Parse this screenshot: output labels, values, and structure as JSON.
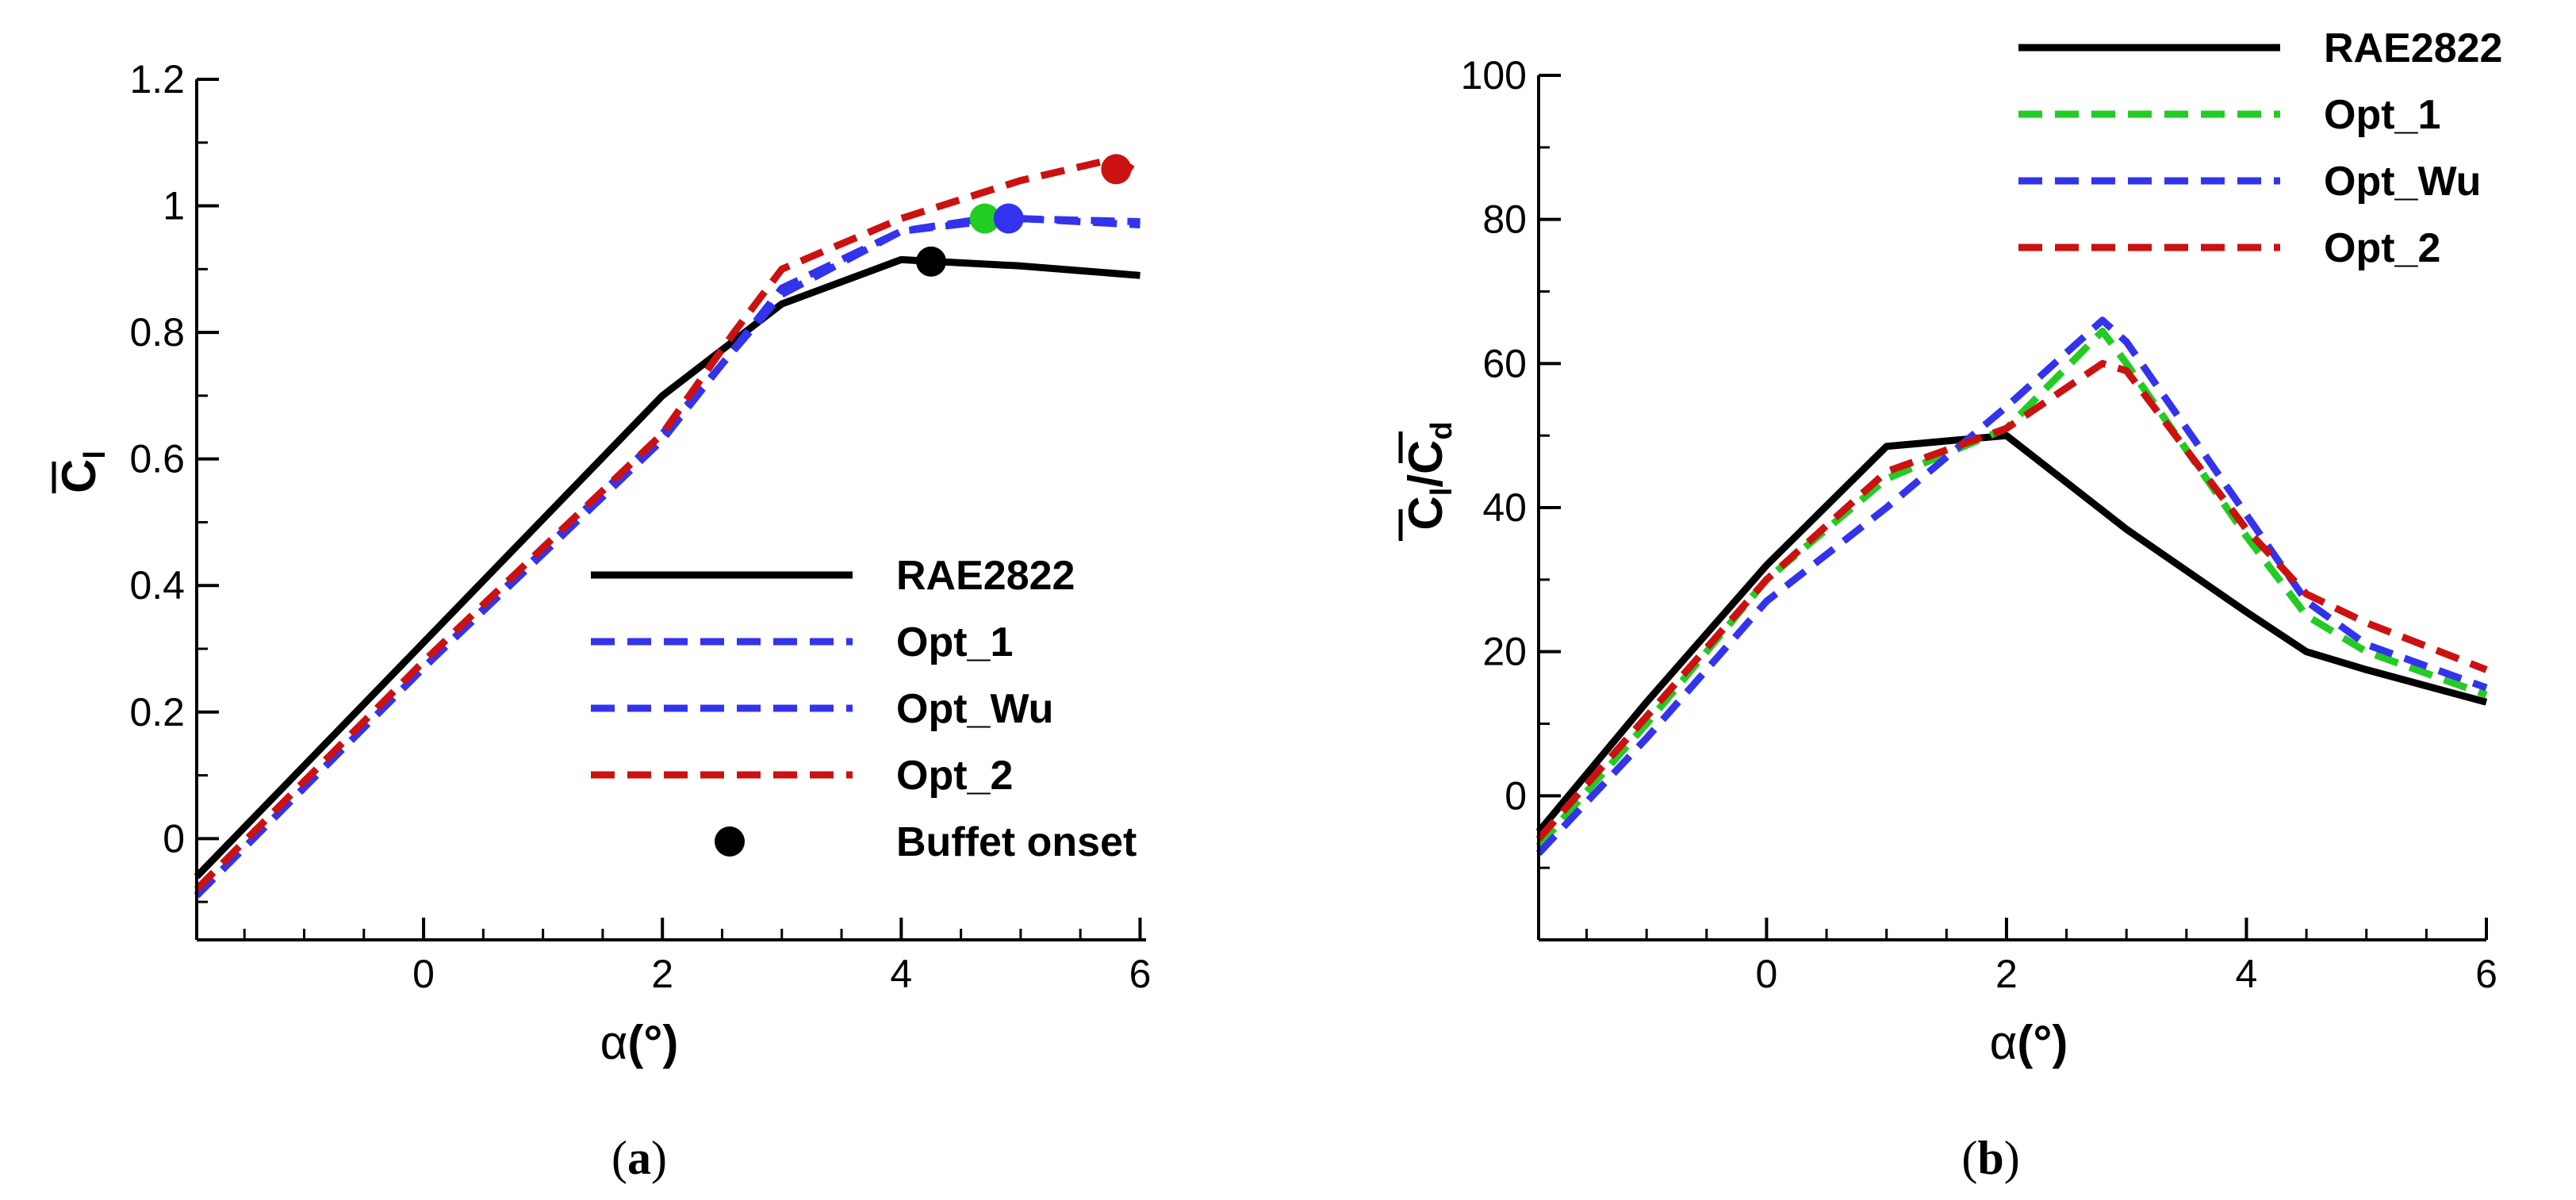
{
  "chart_data": [
    {
      "type": "line",
      "panel_label": "(a)",
      "caption": {
        "open": "(",
        "letter": "a",
        "close": ")"
      },
      "xlabel": "α(°)",
      "xlabel_parts": {
        "alpha": "α",
        "open": "(",
        "deg": "°",
        "close": ")"
      },
      "ylabel": "C̄l",
      "ylabel_parts": {
        "main": "C",
        "sub": "l"
      },
      "xlim": [
        -1.9,
        6.05
      ],
      "ylim": [
        -0.16,
        1.2
      ],
      "xticks": [
        0,
        2,
        4,
        6
      ],
      "xtick_labels": [
        "0",
        "2",
        "4",
        "6"
      ],
      "yticks": [
        0,
        0.2,
        0.4,
        0.6,
        0.8,
        1,
        1.2
      ],
      "ytick_labels": [
        "0",
        "0.2",
        "0.4",
        "0.6",
        "0.8",
        "1",
        "1.2"
      ],
      "grid": false,
      "legend_position": "lower-right",
      "series": [
        {
          "name": "RAE2822",
          "color": "#000000",
          "dash": "solid",
          "x": [
            -1.9,
            0,
            2,
            3,
            4,
            5,
            6
          ],
          "y": [
            -0.06,
            0.31,
            0.7,
            0.845,
            0.915,
            0.905,
            0.89
          ]
        },
        {
          "name": "Opt_1",
          "color": "#3333ee",
          "dash": "dashed",
          "x": [
            -1.9,
            0,
            2,
            3,
            4,
            4.7,
            5,
            6
          ],
          "y": [
            -0.09,
            0.27,
            0.64,
            0.86,
            0.96,
            0.98,
            0.98,
            0.97
          ]
        },
        {
          "name": "Opt_Wu",
          "color": "#3333ee",
          "dash": "dashed",
          "x": [
            -1.9,
            0,
            2,
            3,
            4,
            4.9,
            6
          ],
          "y": [
            -0.09,
            0.27,
            0.63,
            0.87,
            0.96,
            0.98,
            0.975
          ]
        },
        {
          "name": "Opt_2",
          "color": "#cc1111",
          "dash": "dashed",
          "x": [
            -1.9,
            0,
            2,
            2.6,
            3,
            4,
            5,
            5.8,
            6
          ],
          "y": [
            -0.08,
            0.28,
            0.64,
            0.8,
            0.9,
            0.98,
            1.04,
            1.075,
            1.05
          ]
        }
      ],
      "buffet_points": [
        {
          "series": "RAE2822",
          "x": 4.25,
          "y": 0.912,
          "color": "#000000"
        },
        {
          "series": "Opt_1",
          "x": 4.7,
          "y": 0.98,
          "color": "#22cc22"
        },
        {
          "series": "Opt_Wu",
          "x": 4.9,
          "y": 0.98,
          "color": "#3333ee"
        },
        {
          "series": "Opt_2",
          "x": 5.8,
          "y": 1.058,
          "color": "#cc1111"
        }
      ],
      "legend": [
        {
          "label": "RAE2822",
          "color": "#000000",
          "kind": "solid"
        },
        {
          "label": "Opt_1",
          "color": "#3333ee",
          "kind": "dashed"
        },
        {
          "label": "Opt_Wu",
          "color": "#3333ee",
          "kind": "dashed"
        },
        {
          "label": "Opt_2",
          "color": "#cc1111",
          "kind": "dashed"
        },
        {
          "label": "Buffet onset",
          "color": "#000000",
          "kind": "marker"
        }
      ]
    },
    {
      "type": "line",
      "panel_label": "(b)",
      "caption": {
        "open": "(",
        "letter": "b",
        "close": ")"
      },
      "xlabel": "α(°)",
      "xlabel_parts": {
        "alpha": "α",
        "open": "(",
        "deg": "°",
        "close": ")"
      },
      "ylabel": "C̄l/C̄d",
      "ylabel_parts": {
        "main1": "C",
        "sub1": "l",
        "slash": "/",
        "main2": "C",
        "sub2": "d"
      },
      "xlim": [
        -1.9,
        6.0
      ],
      "ylim": [
        -20,
        100
      ],
      "xticks": [
        0,
        2,
        4,
        6
      ],
      "xtick_labels": [
        "0",
        "2",
        "4",
        "6"
      ],
      "yticks": [
        0,
        20,
        40,
        60,
        80,
        100
      ],
      "ytick_labels": [
        "0",
        "20",
        "40",
        "60",
        "80",
        "100"
      ],
      "grid": false,
      "legend_position": "top-right",
      "series": [
        {
          "name": "RAE2822",
          "color": "#000000",
          "dash": "solid",
          "x": [
            -1.9,
            -1,
            0,
            1,
            2,
            3,
            4,
            4.5,
            5,
            6
          ],
          "y": [
            -5,
            13,
            32,
            48.5,
            50,
            37,
            25.5,
            20,
            17.5,
            13
          ]
        },
        {
          "name": "Opt_1",
          "color": "#22cc22",
          "dash": "dashed",
          "x": [
            -1.9,
            -1,
            0,
            1,
            2,
            2.8,
            3,
            4,
            4.5,
            5,
            6
          ],
          "y": [
            -7,
            10,
            30,
            44,
            51,
            64.5,
            60,
            36,
            25,
            20,
            14
          ]
        },
        {
          "name": "Opt_Wu",
          "color": "#3333ee",
          "dash": "dashed",
          "x": [
            -1.9,
            -1,
            0,
            1,
            2,
            2.8,
            3,
            4,
            4.5,
            5,
            6
          ],
          "y": [
            -8,
            8,
            27,
            40,
            54,
            66,
            63,
            39,
            27,
            21,
            15
          ]
        },
        {
          "name": "Opt_2",
          "color": "#cc1111",
          "dash": "dashed",
          "x": [
            -1.9,
            -1,
            0,
            1,
            2,
            2.8,
            3,
            4,
            4.5,
            5,
            6
          ],
          "y": [
            -6,
            11,
            30,
            45,
            51,
            60,
            59,
            37,
            28,
            24,
            17.5
          ]
        }
      ],
      "legend": [
        {
          "label": "RAE2822",
          "color": "#000000",
          "kind": "solid"
        },
        {
          "label": "Opt_1",
          "color": "#22cc22",
          "kind": "dashed"
        },
        {
          "label": "Opt_Wu",
          "color": "#3333ee",
          "kind": "dashed"
        },
        {
          "label": "Opt_2",
          "color": "#cc1111",
          "kind": "dashed"
        }
      ]
    }
  ]
}
